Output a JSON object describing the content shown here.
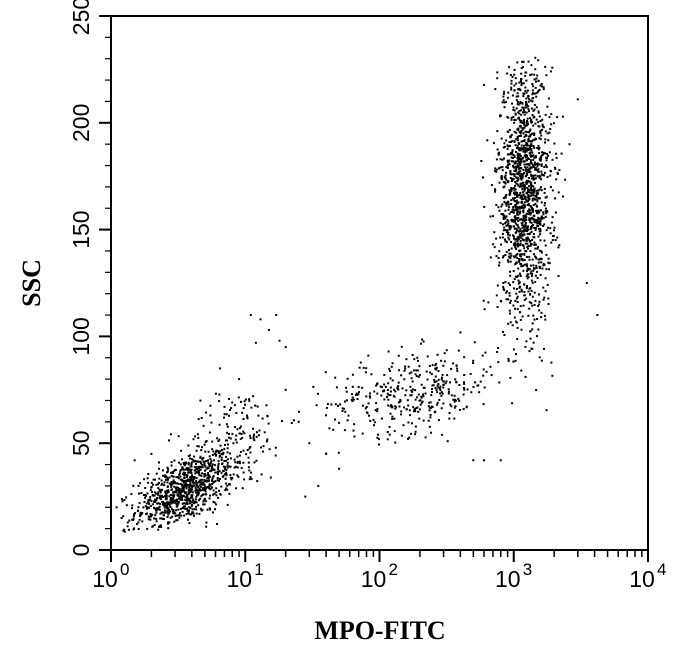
{
  "chart_data": {
    "type": "scatter",
    "title": "",
    "xlabel": "MPO-FITC",
    "ylabel": "SSC",
    "x_scale": "log",
    "xlim": [
      1,
      10000
    ],
    "ylim": [
      0,
      250
    ],
    "x_ticks": [
      {
        "base": "10",
        "exp": "0",
        "value": 1
      },
      {
        "base": "10",
        "exp": "1",
        "value": 10
      },
      {
        "base": "10",
        "exp": "2",
        "value": 100
      },
      {
        "base": "10",
        "exp": "3",
        "value": 1000
      },
      {
        "base": "10",
        "exp": "4",
        "value": 10000
      }
    ],
    "y_ticks": [
      "0",
      "50",
      "100",
      "150",
      "200",
      "250"
    ],
    "grid": false,
    "legend": "none",
    "point_color": "#000000",
    "clusters": [
      {
        "name_hidden": true,
        "n": 900,
        "center": [
          3.5,
          28
        ],
        "spread_log10": [
          0.18,
          9
        ],
        "corr": 0.55
      },
      {
        "name_hidden": true,
        "n": 180,
        "center": [
          8,
          50
        ],
        "spread_log10": [
          0.2,
          14
        ],
        "corr": 0.4
      },
      {
        "name_hidden": true,
        "n": 380,
        "center": [
          180,
          74
        ],
        "spread_log10": [
          0.32,
          10
        ],
        "corr": 0.3
      },
      {
        "name_hidden": true,
        "n": 1500,
        "center": [
          1200,
          168
        ],
        "spread_log10": [
          0.1,
          30
        ],
        "corr": 0.0
      }
    ],
    "outliers": [
      [
        11,
        110
      ],
      [
        13,
        108
      ],
      [
        17,
        110
      ],
      [
        18,
        98
      ],
      [
        20,
        95
      ],
      [
        12,
        97
      ],
      [
        15,
        103
      ],
      [
        20,
        75
      ],
      [
        25,
        60
      ],
      [
        30,
        50
      ],
      [
        40,
        45
      ],
      [
        50,
        38
      ],
      [
        35,
        30
      ],
      [
        28,
        25
      ],
      [
        4200,
        110
      ],
      [
        3500,
        125
      ],
      [
        3000,
        211
      ],
      [
        2600,
        190
      ],
      [
        500,
        42
      ],
      [
        600,
        42
      ],
      [
        800,
        42
      ],
      [
        2,
        45
      ],
      [
        1.5,
        42
      ],
      [
        6.5,
        85
      ],
      [
        7,
        67
      ],
      [
        1.1,
        20
      ],
      [
        1.2,
        15
      ],
      [
        9,
        80
      ]
    ]
  }
}
